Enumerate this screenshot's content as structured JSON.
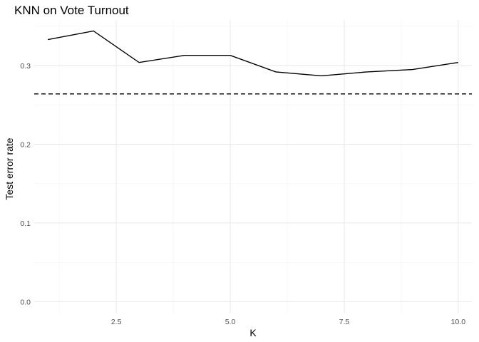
{
  "chart_data": {
    "type": "line",
    "title": "KNN on Vote Turnout",
    "xlabel": "K",
    "ylabel": "Test error rate",
    "x": [
      1,
      2,
      3,
      4,
      5,
      6,
      7,
      8,
      9,
      10
    ],
    "series": [
      {
        "values": [
          0.333,
          0.344,
          0.304,
          0.313,
          0.313,
          0.292,
          0.287,
          0.292,
          0.295,
          0.304
        ]
      }
    ],
    "reference_line": {
      "y": 0.264,
      "style": "dashed"
    },
    "xlim": [
      0.7,
      10.3
    ],
    "ylim": [
      -0.015,
      0.358
    ],
    "x_ticks": [
      2.5,
      5.0,
      7.5,
      10.0
    ],
    "x_tick_labels": [
      "2.5",
      "5.0",
      "7.5",
      "10.0"
    ],
    "x_minor_ticks": [
      1.25,
      3.75,
      6.25,
      8.75
    ],
    "y_ticks": [
      0.0,
      0.1,
      0.2,
      0.3
    ],
    "y_tick_labels": [
      "0.0",
      "0.1",
      "0.2",
      "0.3"
    ],
    "y_minor_ticks": [
      0.05,
      0.15,
      0.25,
      0.35
    ],
    "grid": true,
    "legend": "none",
    "colors": {
      "line": "#000000",
      "grid": "#ebebeb",
      "background": "#ffffff"
    }
  }
}
